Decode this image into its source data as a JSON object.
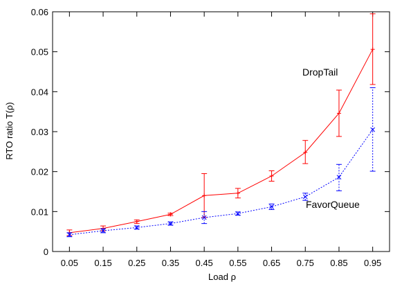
{
  "chart_data": {
    "type": "line",
    "title": "",
    "xlabel": "Load ρ",
    "ylabel": "RTO ratio T(ρ)",
    "x": [
      0.05,
      0.15,
      0.25,
      0.35,
      0.45,
      0.55,
      0.65,
      0.75,
      0.85,
      0.95
    ],
    "x_tick_labels": [
      "0.05",
      "0.15",
      "0.25",
      "0.35",
      "0.45",
      "0.55",
      "0.65",
      "0.75",
      "0.85",
      "0.95"
    ],
    "y_tick_labels": [
      "0",
      "0.01",
      "0.02",
      "0.03",
      "0.04",
      "0.05",
      "0.06"
    ],
    "y_ticks": [
      0,
      0.01,
      0.02,
      0.03,
      0.04,
      0.05,
      0.06
    ],
    "xlim": [
      0.0,
      1.0
    ],
    "ylim": [
      0,
      0.06
    ],
    "grid": false,
    "series": [
      {
        "name": "DropTail",
        "color": "#ff0000",
        "line_style": "solid",
        "marker": "plus",
        "values": [
          0.0047,
          0.0058,
          0.0075,
          0.0093,
          0.014,
          0.0146,
          0.0189,
          0.0248,
          0.0346,
          0.0506
        ],
        "err_low": [
          0.004,
          0.0052,
          0.007,
          0.009,
          0.0085,
          0.0134,
          0.0176,
          0.022,
          0.0288,
          0.0418
        ],
        "err_high": [
          0.0054,
          0.0064,
          0.0079,
          0.0096,
          0.0195,
          0.0158,
          0.0202,
          0.0278,
          0.0404,
          0.0595
        ]
      },
      {
        "name": "FavorQueue",
        "color": "#0000ff",
        "line_style": "dotted",
        "marker": "x",
        "values": [
          0.0042,
          0.0052,
          0.006,
          0.007,
          0.0085,
          0.0095,
          0.0112,
          0.0137,
          0.0186,
          0.0305
        ],
        "err_low": [
          0.0037,
          0.0047,
          0.0056,
          0.0066,
          0.007,
          0.0091,
          0.0105,
          0.0128,
          0.0152,
          0.0201
        ],
        "err_high": [
          0.0047,
          0.0057,
          0.0064,
          0.0074,
          0.01,
          0.0099,
          0.0119,
          0.0146,
          0.0218,
          0.041
        ]
      }
    ]
  }
}
